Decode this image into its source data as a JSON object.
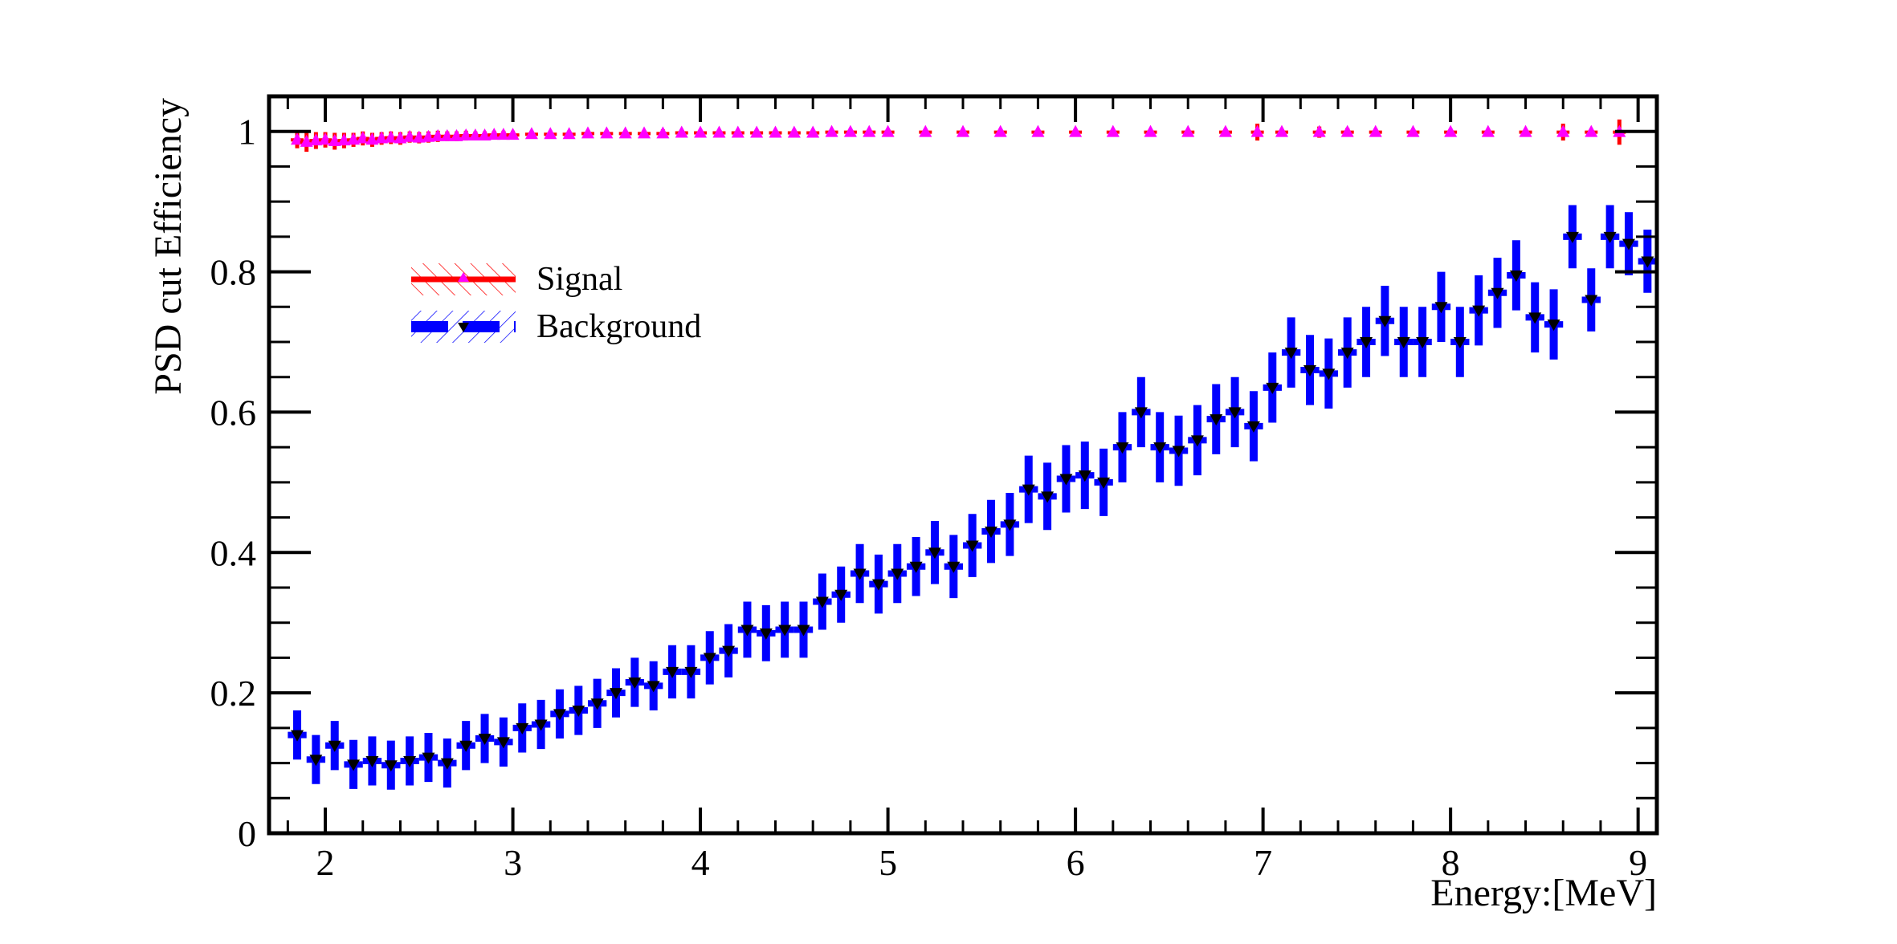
{
  "chart_data": {
    "type": "scatter",
    "title": "",
    "xlabel": "Energy:[MeV]",
    "ylabel": "PSD cut Efficiency",
    "xlim": [
      1.7,
      9.1
    ],
    "ylim": [
      0,
      1.05
    ],
    "xticks": [
      "2",
      "3",
      "4",
      "5",
      "6",
      "7",
      "8",
      "9"
    ],
    "yticks": [
      "0",
      "0.2",
      "0.4",
      "0.6",
      "0.8",
      "1"
    ],
    "grid": false,
    "legend_position": "upper-left",
    "series": [
      {
        "name": "Signal",
        "line_color": "#ff0000",
        "marker_color": "#ff00ff",
        "marker": "triangle-up",
        "points": [
          [
            1.85,
            0.988,
            0.012
          ],
          [
            1.9,
            0.985,
            0.014
          ],
          [
            1.95,
            0.987,
            0.012
          ],
          [
            2.0,
            0.988,
            0.011
          ],
          [
            2.05,
            0.986,
            0.012
          ],
          [
            2.1,
            0.987,
            0.011
          ],
          [
            2.15,
            0.988,
            0.01
          ],
          [
            2.2,
            0.99,
            0.01
          ],
          [
            2.25,
            0.988,
            0.01
          ],
          [
            2.3,
            0.99,
            0.009
          ],
          [
            2.35,
            0.991,
            0.009
          ],
          [
            2.4,
            0.99,
            0.009
          ],
          [
            2.45,
            0.992,
            0.008
          ],
          [
            2.5,
            0.991,
            0.008
          ],
          [
            2.55,
            0.992,
            0.008
          ],
          [
            2.6,
            0.993,
            0.008
          ],
          [
            2.65,
            0.993,
            0.007
          ],
          [
            2.7,
            0.993,
            0.007
          ],
          [
            2.75,
            0.994,
            0.007
          ],
          [
            2.8,
            0.994,
            0.006
          ],
          [
            2.85,
            0.994,
            0.006
          ],
          [
            2.9,
            0.995,
            0.006
          ],
          [
            2.95,
            0.995,
            0.006
          ],
          [
            3.0,
            0.995,
            0.006
          ],
          [
            3.1,
            0.996,
            0.005
          ],
          [
            3.2,
            0.996,
            0.005
          ],
          [
            3.3,
            0.996,
            0.005
          ],
          [
            3.4,
            0.997,
            0.004
          ],
          [
            3.5,
            0.997,
            0.004
          ],
          [
            3.6,
            0.997,
            0.004
          ],
          [
            3.7,
            0.997,
            0.004
          ],
          [
            3.8,
            0.997,
            0.006
          ],
          [
            3.9,
            0.998,
            0.004
          ],
          [
            4.0,
            0.998,
            0.003
          ],
          [
            4.1,
            0.998,
            0.004
          ],
          [
            4.2,
            0.998,
            0.003
          ],
          [
            4.3,
            0.998,
            0.003
          ],
          [
            4.4,
            0.998,
            0.003
          ],
          [
            4.5,
            0.998,
            0.003
          ],
          [
            4.6,
            0.998,
            0.003
          ],
          [
            4.7,
            0.999,
            0.003
          ],
          [
            4.8,
            0.999,
            0.003
          ],
          [
            4.9,
            0.999,
            0.003
          ],
          [
            5.0,
            0.999,
            0.002
          ],
          [
            5.2,
            0.999,
            0.002
          ],
          [
            5.4,
            0.999,
            0.002
          ],
          [
            5.6,
            0.999,
            0.002
          ],
          [
            5.8,
            0.999,
            0.002
          ],
          [
            6.0,
            0.999,
            0.002
          ],
          [
            6.2,
            0.999,
            0.002
          ],
          [
            6.4,
            0.999,
            0.002
          ],
          [
            6.6,
            0.999,
            0.002
          ],
          [
            6.8,
            0.999,
            0.002
          ],
          [
            6.97,
            0.999,
            0.012
          ],
          [
            7.1,
            0.999,
            0.003
          ],
          [
            7.3,
            0.999,
            0.008
          ],
          [
            7.45,
            0.999,
            0.006
          ],
          [
            7.6,
            0.999,
            0.005
          ],
          [
            7.8,
            0.999,
            0.003
          ],
          [
            8.0,
            0.999,
            0.003
          ],
          [
            8.2,
            0.999,
            0.003
          ],
          [
            8.4,
            0.999,
            0.003
          ],
          [
            8.6,
            0.999,
            0.012
          ],
          [
            8.75,
            0.999,
            0.004
          ],
          [
            8.9,
            0.999,
            0.018
          ]
        ]
      },
      {
        "name": "Background",
        "line_color": "#0000ff",
        "marker_color": "#000000",
        "marker": "triangle-down",
        "points": [
          [
            1.85,
            0.14,
            0.035
          ],
          [
            1.95,
            0.105,
            0.035
          ],
          [
            2.05,
            0.125,
            0.035
          ],
          [
            2.15,
            0.098,
            0.035
          ],
          [
            2.25,
            0.103,
            0.035
          ],
          [
            2.35,
            0.097,
            0.035
          ],
          [
            2.45,
            0.103,
            0.035
          ],
          [
            2.55,
            0.108,
            0.035
          ],
          [
            2.65,
            0.1,
            0.035
          ],
          [
            2.75,
            0.125,
            0.035
          ],
          [
            2.85,
            0.135,
            0.035
          ],
          [
            2.95,
            0.13,
            0.035
          ],
          [
            3.05,
            0.15,
            0.035
          ],
          [
            3.15,
            0.155,
            0.035
          ],
          [
            3.25,
            0.17,
            0.035
          ],
          [
            3.35,
            0.175,
            0.035
          ],
          [
            3.45,
            0.185,
            0.035
          ],
          [
            3.55,
            0.2,
            0.035
          ],
          [
            3.65,
            0.215,
            0.035
          ],
          [
            3.75,
            0.21,
            0.035
          ],
          [
            3.85,
            0.23,
            0.038
          ],
          [
            3.95,
            0.23,
            0.038
          ],
          [
            4.05,
            0.25,
            0.038
          ],
          [
            4.15,
            0.26,
            0.038
          ],
          [
            4.25,
            0.29,
            0.04
          ],
          [
            4.35,
            0.285,
            0.04
          ],
          [
            4.45,
            0.29,
            0.04
          ],
          [
            4.55,
            0.29,
            0.04
          ],
          [
            4.65,
            0.33,
            0.04
          ],
          [
            4.75,
            0.34,
            0.04
          ],
          [
            4.85,
            0.37,
            0.042
          ],
          [
            4.95,
            0.355,
            0.042
          ],
          [
            5.05,
            0.37,
            0.042
          ],
          [
            5.15,
            0.38,
            0.042
          ],
          [
            5.25,
            0.4,
            0.045
          ],
          [
            5.35,
            0.38,
            0.045
          ],
          [
            5.45,
            0.41,
            0.045
          ],
          [
            5.55,
            0.43,
            0.045
          ],
          [
            5.65,
            0.44,
            0.045
          ],
          [
            5.75,
            0.49,
            0.048
          ],
          [
            5.85,
            0.48,
            0.048
          ],
          [
            5.95,
            0.505,
            0.048
          ],
          [
            6.05,
            0.51,
            0.048
          ],
          [
            6.15,
            0.5,
            0.048
          ],
          [
            6.25,
            0.55,
            0.05
          ],
          [
            6.35,
            0.6,
            0.05
          ],
          [
            6.45,
            0.55,
            0.05
          ],
          [
            6.55,
            0.545,
            0.05
          ],
          [
            6.65,
            0.56,
            0.05
          ],
          [
            6.75,
            0.59,
            0.05
          ],
          [
            6.85,
            0.6,
            0.05
          ],
          [
            6.95,
            0.58,
            0.05
          ],
          [
            7.05,
            0.635,
            0.05
          ],
          [
            7.15,
            0.685,
            0.05
          ],
          [
            7.25,
            0.66,
            0.05
          ],
          [
            7.35,
            0.655,
            0.05
          ],
          [
            7.45,
            0.685,
            0.05
          ],
          [
            7.55,
            0.7,
            0.05
          ],
          [
            7.65,
            0.73,
            0.05
          ],
          [
            7.75,
            0.7,
            0.05
          ],
          [
            7.85,
            0.7,
            0.05
          ],
          [
            7.95,
            0.75,
            0.05
          ],
          [
            8.05,
            0.7,
            0.05
          ],
          [
            8.15,
            0.745,
            0.05
          ],
          [
            8.25,
            0.77,
            0.05
          ],
          [
            8.35,
            0.795,
            0.05
          ],
          [
            8.45,
            0.735,
            0.05
          ],
          [
            8.55,
            0.725,
            0.05
          ],
          [
            8.65,
            0.85,
            0.045
          ],
          [
            8.75,
            0.76,
            0.045
          ],
          [
            8.85,
            0.85,
            0.045
          ],
          [
            8.95,
            0.84,
            0.045
          ],
          [
            9.05,
            0.815,
            0.045
          ]
        ]
      }
    ]
  }
}
